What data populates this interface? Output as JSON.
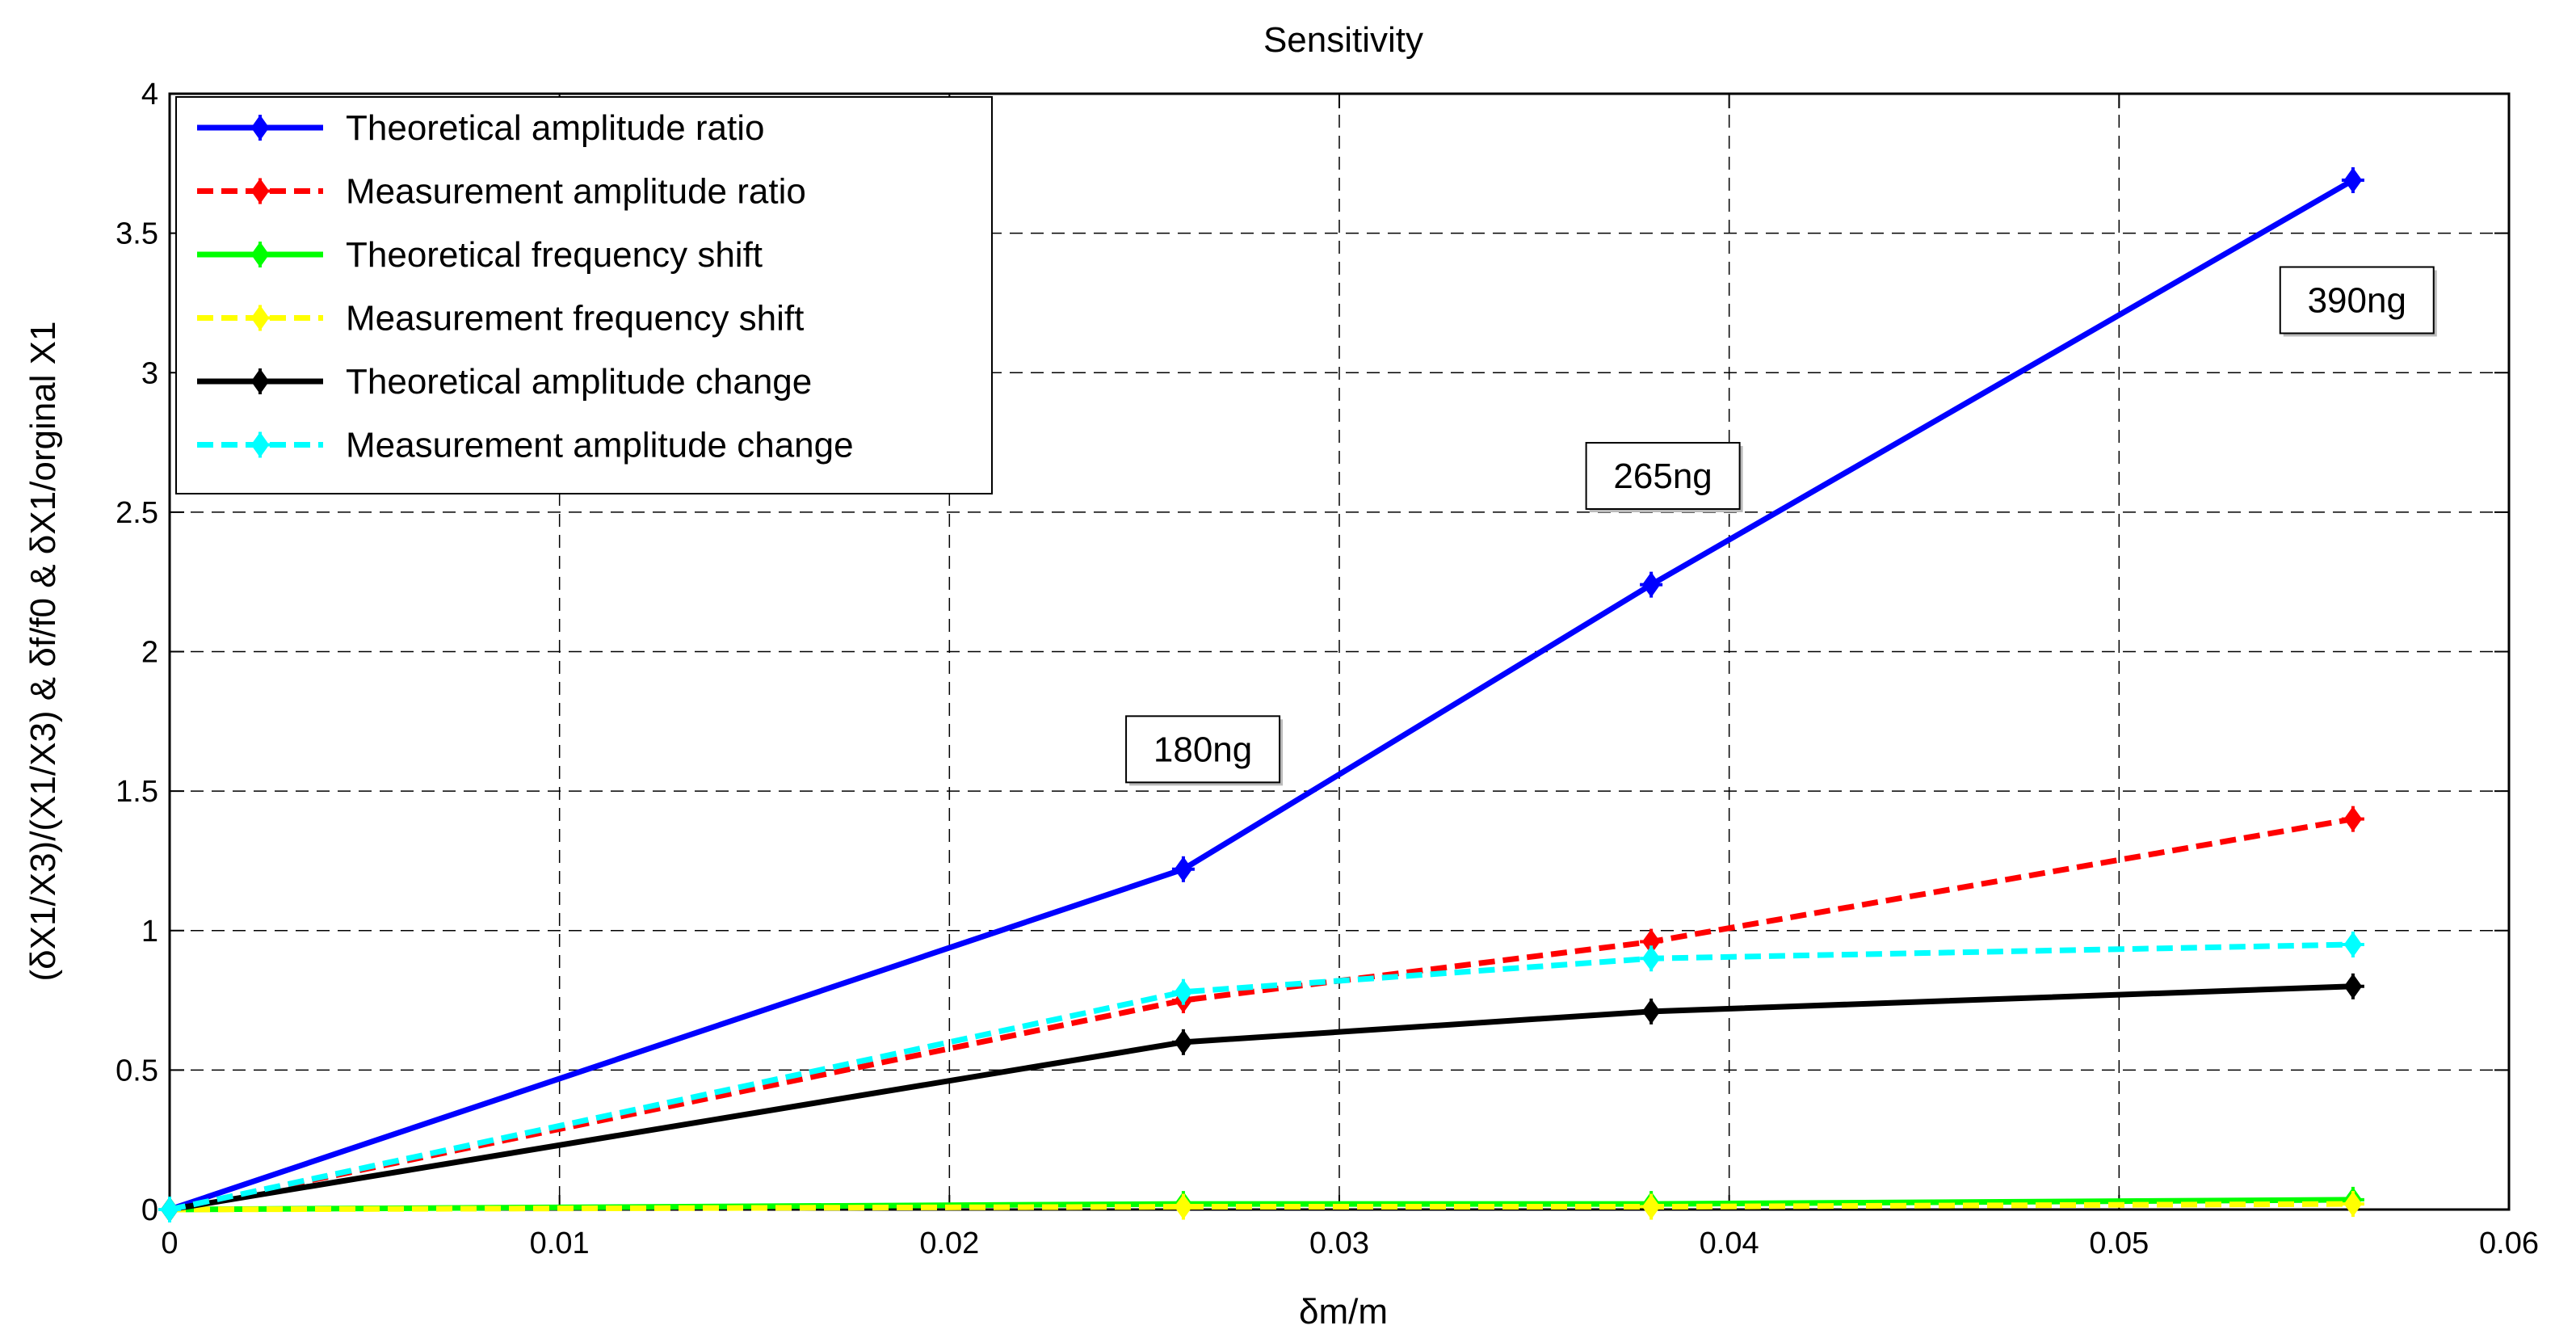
{
  "chart_data": {
    "type": "line",
    "title": "Sensitivity",
    "xlabel": "δm/m",
    "ylabel": "(δX1/X3)/(X1/X3) & δf/f0 & δX1/orginal X1",
    "xlim": [
      0,
      0.06
    ],
    "ylim": [
      0,
      4
    ],
    "grid": true,
    "legend_position": "top-left",
    "xticks": [
      0,
      0.01,
      0.02,
      0.03,
      0.04,
      0.05,
      0.06
    ],
    "xtick_labels": [
      "0",
      "0.01",
      "0.02",
      "0.03",
      "0.04",
      "0.05",
      "0.06"
    ],
    "yticks": [
      0,
      0.5,
      1,
      1.5,
      2,
      2.5,
      3,
      3.5,
      4
    ],
    "ytick_labels": [
      "0",
      "0.5",
      "1",
      "1.5",
      "2",
      "2.5",
      "3",
      "3.5",
      "4"
    ],
    "x": [
      0,
      0.026,
      0.038,
      0.056
    ],
    "series": [
      {
        "name": "Theoretical amplitude ratio",
        "values": [
          0,
          1.22,
          2.24,
          3.69
        ],
        "color": "#0000ff",
        "dash": "solid"
      },
      {
        "name": "Measurement amplitude ratio",
        "values": [
          0,
          0.75,
          0.96,
          1.4
        ],
        "color": "#ff0000",
        "dash": "dashed"
      },
      {
        "name": "Theoretical frequency shift",
        "values": [
          0,
          0.02,
          0.02,
          0.035
        ],
        "color": "#00ff00",
        "dash": "solid"
      },
      {
        "name": "Measurement frequency shift",
        "values": [
          0,
          0.01,
          0.01,
          0.02
        ],
        "color": "#ffff00",
        "dash": "dashed"
      },
      {
        "name": "Theoretical amplitude change",
        "values": [
          0,
          0.6,
          0.71,
          0.8
        ],
        "color": "#000000",
        "dash": "solid"
      },
      {
        "name": "Measurement amplitude change",
        "values": [
          0,
          0.78,
          0.9,
          0.95
        ],
        "color": "#00ffff",
        "dash": "dashed"
      }
    ],
    "annotations": [
      {
        "text": "180ng",
        "x": 0.0265,
        "y": 1.65
      },
      {
        "text": "265ng",
        "x": 0.0383,
        "y": 2.63
      },
      {
        "text": "390ng",
        "x": 0.0561,
        "y": 3.26
      }
    ]
  }
}
